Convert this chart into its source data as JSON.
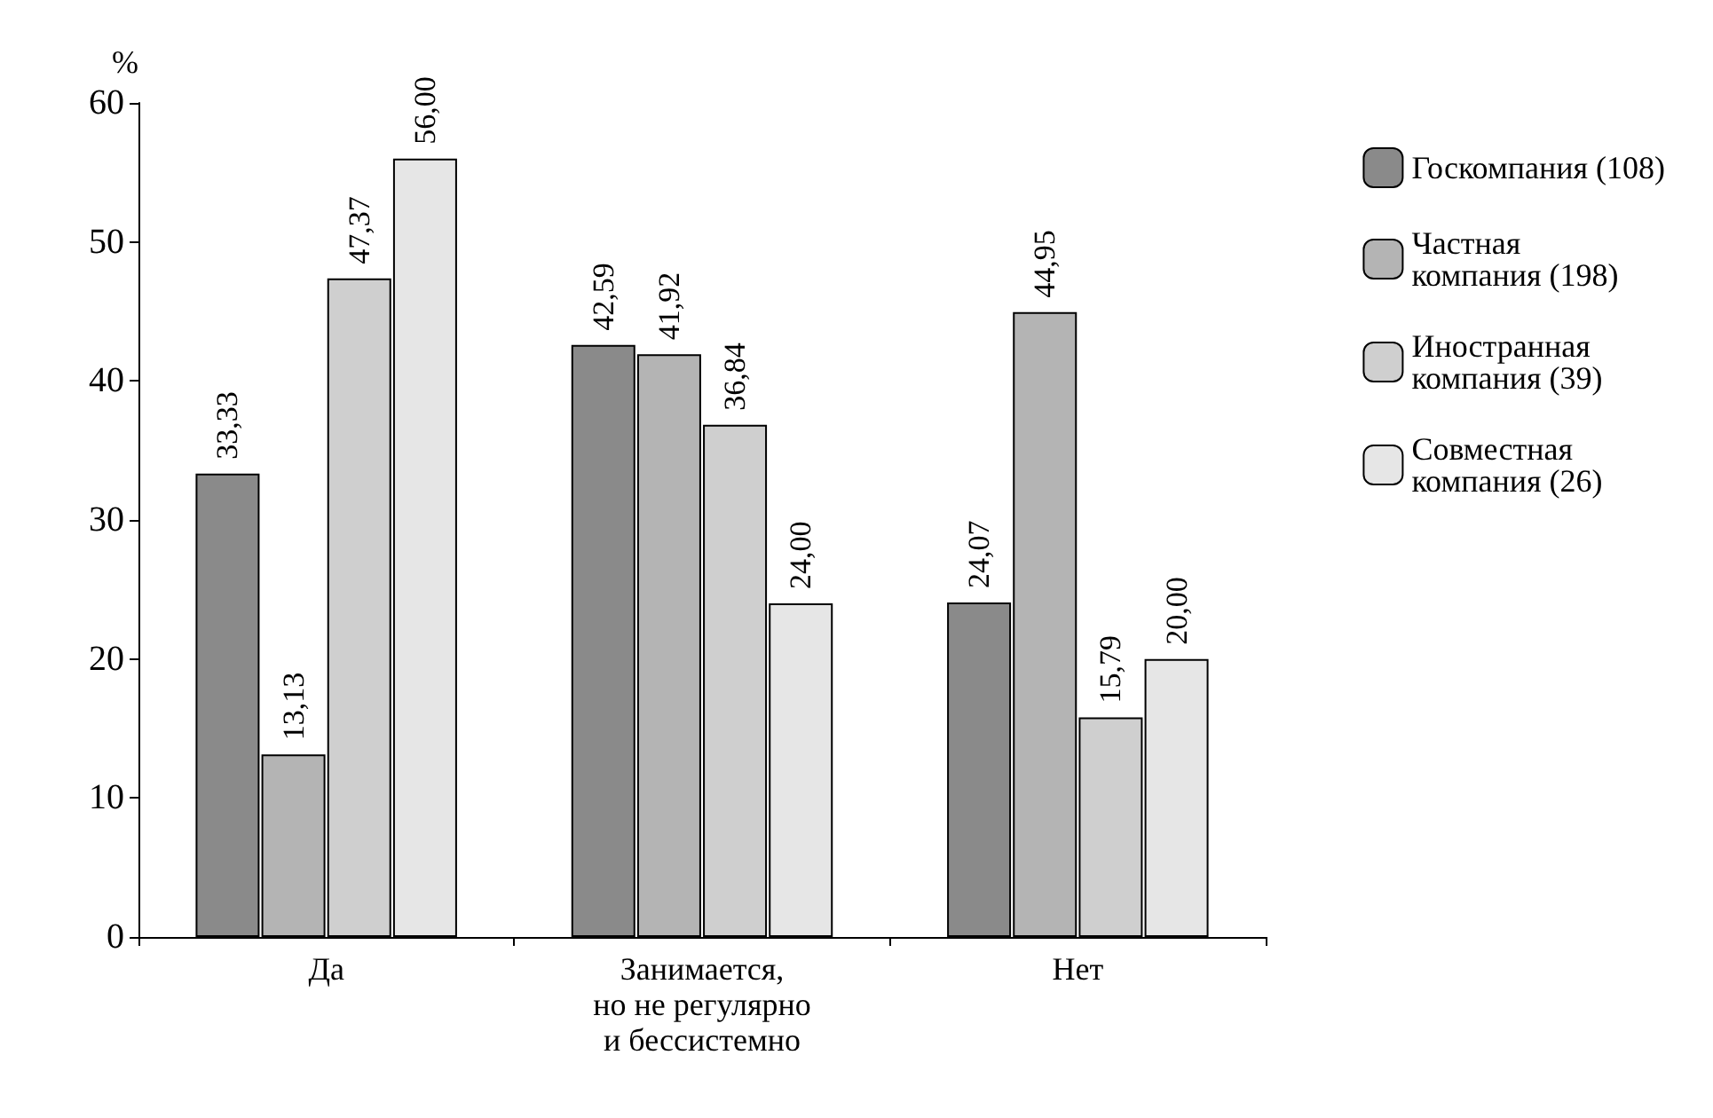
{
  "chart_data": {
    "type": "bar",
    "ylabel": "%",
    "categories": [
      "Да",
      "Занимается,\nно не регулярно\nи бессистемно",
      "Нет"
    ],
    "series": [
      {
        "name": "Госкомпания (108)",
        "color": "#8a8a8a",
        "values": [
          33.33,
          42.59,
          24.07
        ],
        "value_labels": [
          "33,33",
          "42,59",
          "24,07"
        ]
      },
      {
        "name": "Частная\nкомпания (198)",
        "color": "#b4b4b4",
        "values": [
          13.13,
          41.92,
          44.95
        ],
        "value_labels": [
          "13,13",
          "41,92",
          "44,95"
        ]
      },
      {
        "name": "Иностранная\nкомпания (39)",
        "color": "#cfcfcf",
        "values": [
          47.37,
          36.84,
          15.79
        ],
        "value_labels": [
          "47,37",
          "36,84",
          "15,79"
        ]
      },
      {
        "name": "Совместная\nкомпания (26)",
        "color": "#e6e6e6",
        "values": [
          56.0,
          24.0,
          20.0
        ],
        "value_labels": [
          "56,00",
          "24,00",
          "20,00"
        ]
      }
    ],
    "ylim": [
      0,
      60
    ],
    "yticks": [
      0,
      10,
      20,
      30,
      40,
      50,
      60
    ],
    "grid": false,
    "legend": "right"
  }
}
